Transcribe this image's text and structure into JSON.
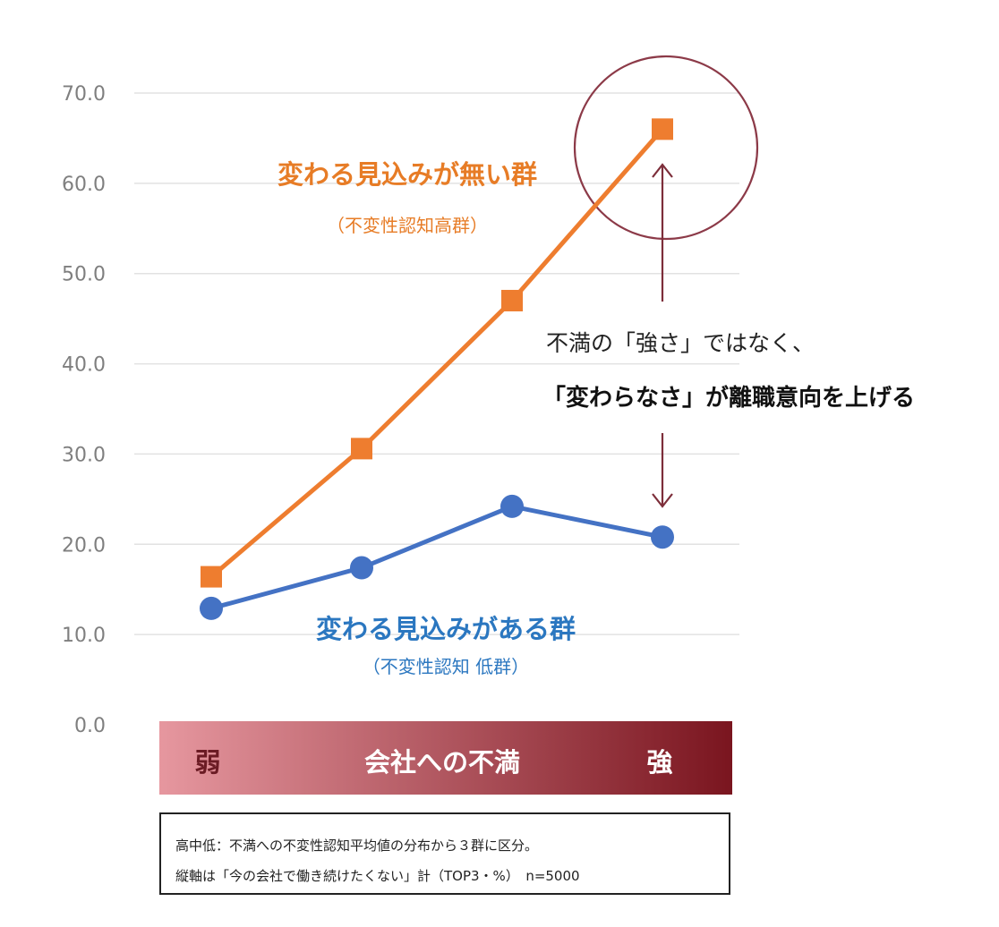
{
  "chart_data": {
    "type": "line",
    "title": "",
    "xlabel": "会社への不満",
    "ylabel": "",
    "categories": [
      "",
      "",
      "",
      ""
    ],
    "ylim": [
      0,
      70
    ],
    "y_ticks": [
      "0.0",
      "10.0",
      "20.0",
      "30.0",
      "40.0",
      "50.0",
      "60.0",
      "70.0"
    ],
    "grid": true,
    "x_axis_band": {
      "left_label": "弱",
      "center_label": "会社への不満",
      "right_label": "強"
    },
    "series": [
      {
        "name": "変わる見込みが無い群",
        "sub_label": "（不変性認知高群）",
        "values": [
          16.4,
          30.6,
          47.0,
          66.0
        ],
        "color": "#ee7d2f",
        "marker": "square"
      },
      {
        "name": "変わる見込みがある群",
        "sub_label": "（不変性認知 低群）",
        "values": [
          12.9,
          17.4,
          24.2,
          20.8
        ],
        "color": "#4472c4",
        "marker": "circle"
      }
    ],
    "annotations": {
      "line1": "不満の「強さ」ではなく、",
      "line2": "「変わらなさ」が離職意向を上げる"
    },
    "colors": {
      "grid": "#e2e2e2",
      "tick_text": "#7f7f7f",
      "arrow": "#7d2e3a",
      "highlight_circle": "#8c3a48",
      "series_label_orange": "#e77c26",
      "series_label_blue": "#2b77c0",
      "band_left": "#e6979f",
      "band_right": "#7a151f"
    }
  },
  "note": {
    "line1": "高中低：不満への不変性認知平均値の分布から３群に区分。",
    "line2": "縦軸は「今の会社で働き続けたくない」計（TOP3・%）　n=5000"
  }
}
